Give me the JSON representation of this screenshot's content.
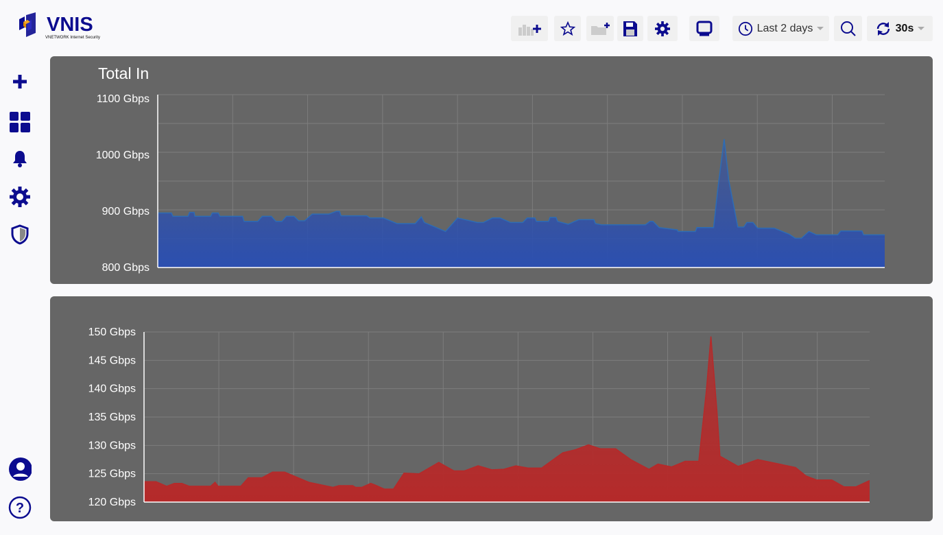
{
  "brand": {
    "name": "VNIS",
    "tagline": "VNETWORK Internet Security",
    "color": "#0c0c8f",
    "accent": "#f5a623"
  },
  "toolbar": {
    "icons": [
      "add-panel-icon",
      "star-icon",
      "add-folder-icon",
      "save-icon",
      "gear-icon",
      "monitor-icon"
    ],
    "time_range": "Last 2 days",
    "refresh": "30s"
  },
  "sidebar": {
    "items": [
      "plus-icon",
      "dashboard-icon",
      "bell-icon",
      "gear-icon",
      "shield-icon"
    ],
    "bottom": [
      "user-icon",
      "help-icon"
    ]
  },
  "chart_data": [
    {
      "type": "area",
      "title": "Total In",
      "unit": "Gbps",
      "x_unit": "hours",
      "xlim": [
        0,
        48
      ],
      "ylim": [
        800,
        1100
      ],
      "yticks": [
        "800 Gbps",
        "900 Gbps",
        "1000 Gbps",
        "1100 Gbps"
      ],
      "ytick_values": [
        800,
        900,
        1000,
        1100
      ],
      "grid": true,
      "color": "#2b4fb0",
      "points": [
        [
          0,
          897
        ],
        [
          0.9,
          897
        ],
        [
          1.0,
          891
        ],
        [
          2.0,
          891
        ],
        [
          2.1,
          898
        ],
        [
          2.4,
          898
        ],
        [
          2.45,
          891
        ],
        [
          3.5,
          891
        ],
        [
          3.6,
          897
        ],
        [
          4.0,
          897
        ],
        [
          4.1,
          891
        ],
        [
          5.6,
          891
        ],
        [
          5.7,
          882
        ],
        [
          6.6,
          882
        ],
        [
          6.9,
          891
        ],
        [
          7.5,
          891
        ],
        [
          7.8,
          882
        ],
        [
          8.2,
          882
        ],
        [
          8.5,
          891
        ],
        [
          9.0,
          891
        ],
        [
          9.3,
          883
        ],
        [
          9.7,
          883
        ],
        [
          10.2,
          895
        ],
        [
          11.3,
          895
        ],
        [
          11.8,
          900
        ],
        [
          12.0,
          900
        ],
        [
          12.1,
          892
        ],
        [
          13.8,
          892
        ],
        [
          14.0,
          888
        ],
        [
          14.9,
          888
        ],
        [
          15.8,
          878
        ],
        [
          17.0,
          878
        ],
        [
          17.4,
          890
        ],
        [
          17.6,
          880
        ],
        [
          19.0,
          864
        ],
        [
          19.8,
          888
        ],
        [
          21.1,
          880
        ],
        [
          21.5,
          880
        ],
        [
          22.1,
          888
        ],
        [
          22.6,
          888
        ],
        [
          23.3,
          880
        ],
        [
          24.1,
          880
        ],
        [
          24.4,
          888
        ],
        [
          24.9,
          888
        ],
        [
          25.0,
          882
        ],
        [
          25.8,
          882
        ],
        [
          25.9,
          889
        ],
        [
          26.3,
          889
        ],
        [
          26.4,
          882
        ],
        [
          27.1,
          877
        ],
        [
          27.8,
          885
        ],
        [
          28.8,
          885
        ],
        [
          28.9,
          878
        ],
        [
          29.3,
          876
        ],
        [
          32.2,
          876
        ],
        [
          32.5,
          882
        ],
        [
          32.7,
          882
        ],
        [
          33.1,
          871
        ],
        [
          34.3,
          867
        ],
        [
          34.35,
          864
        ],
        [
          35.5,
          864
        ],
        [
          35.6,
          871
        ],
        [
          36.7,
          871
        ],
        [
          36.9,
          920
        ],
        [
          37.0,
          944
        ],
        [
          37.4,
          1028
        ],
        [
          37.7,
          956
        ],
        [
          38.3,
          872
        ],
        [
          38.7,
          872
        ],
        [
          38.9,
          880
        ],
        [
          39.3,
          880
        ],
        [
          39.6,
          870
        ],
        [
          40.7,
          870
        ],
        [
          41.7,
          859
        ],
        [
          42.1,
          852
        ],
        [
          42.5,
          852
        ],
        [
          43.0,
          864
        ],
        [
          43.5,
          858
        ],
        [
          44.9,
          858
        ],
        [
          45.1,
          865
        ],
        [
          46.5,
          865
        ],
        [
          46.6,
          858
        ],
        [
          48,
          858
        ]
      ]
    },
    {
      "type": "area",
      "title": "",
      "unit": "Gbps",
      "x_unit": "hours",
      "xlim": [
        0,
        48
      ],
      "ylim": [
        120,
        150
      ],
      "yticks": [
        "120 Gbps",
        "125 Gbps",
        "130 Gbps",
        "135 Gbps",
        "140 Gbps",
        "145 Gbps",
        "150 Gbps"
      ],
      "ytick_values": [
        120,
        125,
        130,
        135,
        140,
        145,
        150
      ],
      "grid": true,
      "color": "#b52a2a",
      "points": [
        [
          0,
          123.6
        ],
        [
          0.8,
          123.6
        ],
        [
          1.5,
          122.8
        ],
        [
          2.0,
          123.3
        ],
        [
          2.5,
          123.3
        ],
        [
          3.0,
          122.8
        ],
        [
          4.4,
          122.8
        ],
        [
          4.7,
          123.5
        ],
        [
          4.9,
          122.8
        ],
        [
          6.4,
          122.8
        ],
        [
          6.9,
          124.3
        ],
        [
          7.8,
          124.3
        ],
        [
          8.5,
          125.3
        ],
        [
          9.3,
          125.3
        ],
        [
          10.9,
          123.5
        ],
        [
          12.5,
          122.6
        ],
        [
          12.9,
          122.9
        ],
        [
          13.8,
          122.9
        ],
        [
          14.0,
          122.6
        ],
        [
          14.4,
          122.6
        ],
        [
          15.0,
          123.3
        ],
        [
          15.3,
          123.0
        ],
        [
          15.9,
          122.3
        ],
        [
          16.5,
          122.3
        ],
        [
          17.2,
          125.1
        ],
        [
          18.2,
          125.0
        ],
        [
          19.5,
          127.0
        ],
        [
          20.5,
          125.5
        ],
        [
          21.2,
          125.5
        ],
        [
          22.1,
          126.4
        ],
        [
          23.0,
          125.7
        ],
        [
          23.8,
          125.8
        ],
        [
          24.6,
          126.4
        ],
        [
          25.4,
          126.0
        ],
        [
          26.3,
          126.0
        ],
        [
          27.7,
          128.7
        ],
        [
          28.5,
          129.2
        ],
        [
          29.4,
          130.1
        ],
        [
          30.2,
          129.4
        ],
        [
          31.2,
          129.4
        ],
        [
          32.2,
          127.5
        ],
        [
          33.4,
          125.8
        ],
        [
          34.0,
          126.7
        ],
        [
          34.9,
          126.2
        ],
        [
          35.8,
          127.2
        ],
        [
          36.7,
          127.2
        ],
        [
          37.2,
          139.7
        ],
        [
          37.5,
          149.2
        ],
        [
          37.9,
          136.0
        ],
        [
          38.1,
          128.1
        ],
        [
          39.3,
          126.3
        ],
        [
          40.6,
          127.5
        ],
        [
          42.2,
          126.6
        ],
        [
          43.1,
          126.1
        ],
        [
          43.8,
          124.6
        ],
        [
          44.5,
          123.9
        ],
        [
          45.5,
          123.9
        ],
        [
          46.3,
          122.7
        ],
        [
          47.1,
          122.7
        ],
        [
          48,
          123.8
        ]
      ]
    }
  ]
}
